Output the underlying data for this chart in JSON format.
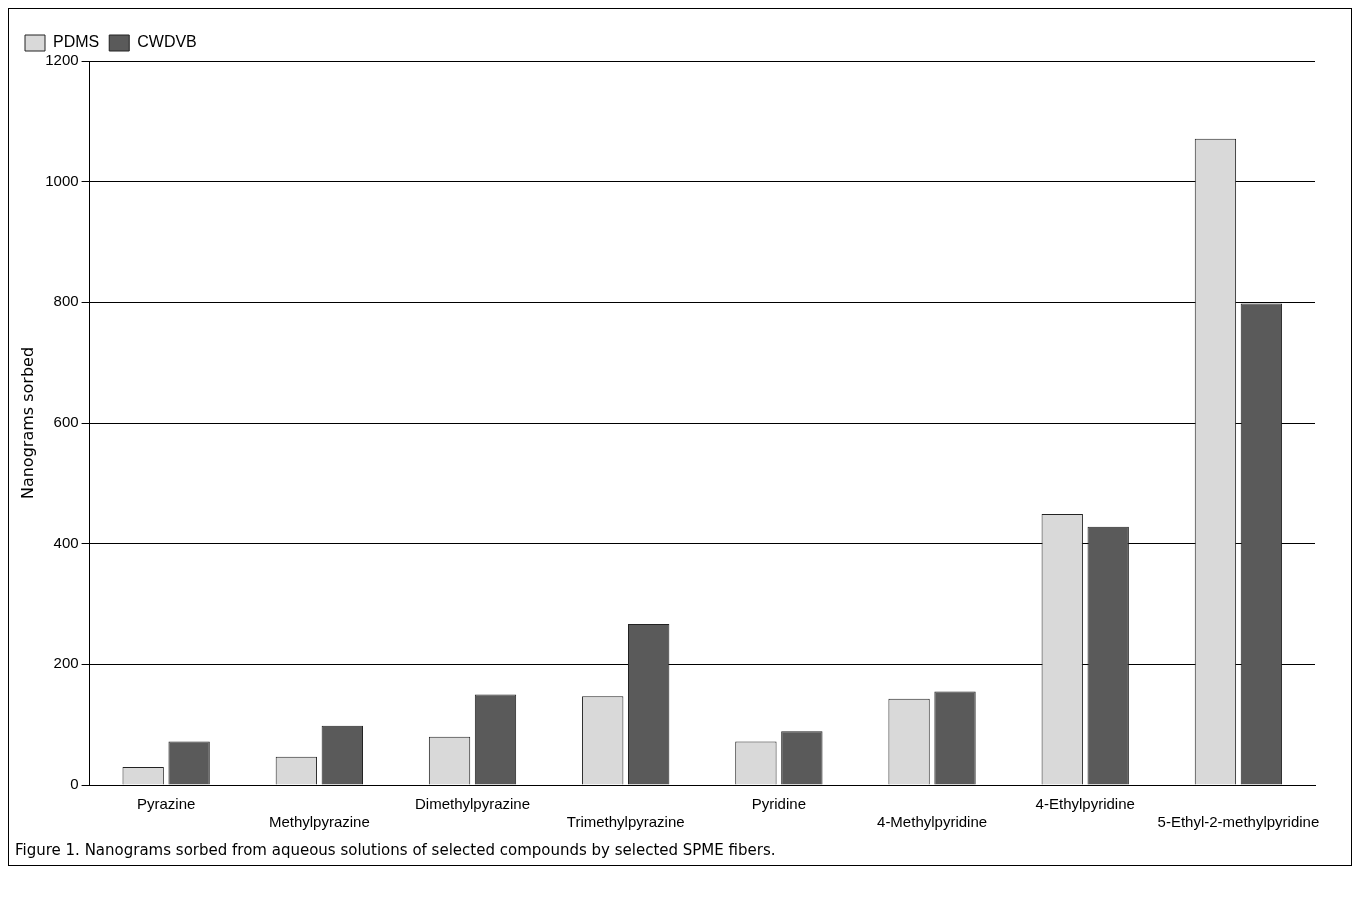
{
  "chart_data": {
    "type": "bar",
    "ylabel": "Nanograms sorbed",
    "categories": [
      "Pyrazine",
      "Methylpyrazine",
      "Dimethylpyrazine",
      "Trimethylpyrazine",
      "Pyridine",
      "4-Methylpyridine",
      "4-Ethylpyridine",
      "5-Ethyl-2-methylpyridine"
    ],
    "series": [
      {
        "name": "PDMS",
        "color": "#d9d9d9",
        "values": [
          30,
          47,
          80,
          147,
          72,
          143,
          449,
          1071
        ]
      },
      {
        "name": "CWDVB",
        "color": "#5a5a5a",
        "values": [
          72,
          98,
          150,
          267,
          89,
          155,
          428,
          798
        ]
      }
    ],
    "ylim": [
      0,
      1200
    ],
    "yticks": [
      0,
      200,
      400,
      600,
      800,
      1000,
      1200
    ],
    "grid": "y",
    "legend": "top left",
    "annotations": [
      "Figure 1. Nanograms sorbed from aqueous solutions of selected compounds by selected SPME fibers."
    ]
  }
}
